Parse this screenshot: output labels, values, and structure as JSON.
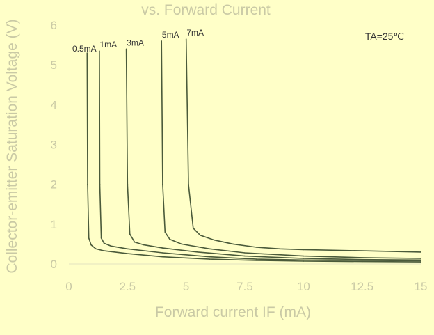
{
  "chart_data": {
    "type": "line",
    "title": "vs. Forward Current",
    "xlabel": "Forward current IF (mA)",
    "ylabel": "Collector-emitter Saturation Voltage (V)",
    "xlim": [
      0,
      15
    ],
    "ylim": [
      0,
      6
    ],
    "x_ticks": [
      "0",
      "2.5",
      "5",
      "7.5",
      "10",
      "12.5",
      "15"
    ],
    "y_ticks": [
      "0",
      "1",
      "2",
      "3",
      "4",
      "5",
      "6"
    ],
    "grid": false,
    "annotation": "TA=25℃",
    "line_color": "#4a5a3a",
    "series": [
      {
        "name": "0.5mA",
        "x": [
          0.78,
          0.8,
          0.85,
          0.95,
          1.15,
          1.5,
          2.5,
          4,
          6,
          8,
          10,
          12.5,
          15
        ],
        "y": [
          5.3,
          2.0,
          0.65,
          0.48,
          0.38,
          0.33,
          0.26,
          0.18,
          0.12,
          0.09,
          0.07,
          0.06,
          0.05
        ]
      },
      {
        "name": "1mA",
        "x": [
          1.3,
          1.32,
          1.38,
          1.5,
          1.8,
          2.5,
          4,
          6,
          8,
          10,
          12.5,
          15
        ],
        "y": [
          5.35,
          2.0,
          0.65,
          0.52,
          0.45,
          0.38,
          0.28,
          0.18,
          0.12,
          0.1,
          0.09,
          0.08
        ]
      },
      {
        "name": "3mA",
        "x": [
          2.45,
          2.5,
          2.6,
          2.8,
          3.2,
          4,
          5.5,
          7.5,
          10,
          12.5,
          15
        ],
        "y": [
          5.4,
          2.0,
          0.75,
          0.55,
          0.48,
          0.4,
          0.3,
          0.2,
          0.14,
          0.11,
          0.1
        ]
      },
      {
        "name": "5mA",
        "x": [
          3.95,
          4.0,
          4.1,
          4.3,
          4.8,
          6,
          7.5,
          10,
          12.5,
          15
        ],
        "y": [
          5.6,
          2.0,
          0.8,
          0.62,
          0.5,
          0.38,
          0.28,
          0.2,
          0.16,
          0.14
        ]
      },
      {
        "name": "7mA",
        "x": [
          5.0,
          5.1,
          5.3,
          5.6,
          6.2,
          7,
          8,
          9,
          10,
          12.5,
          15
        ],
        "y": [
          5.65,
          2.0,
          0.9,
          0.72,
          0.6,
          0.5,
          0.42,
          0.38,
          0.36,
          0.33,
          0.3
        ]
      }
    ]
  }
}
